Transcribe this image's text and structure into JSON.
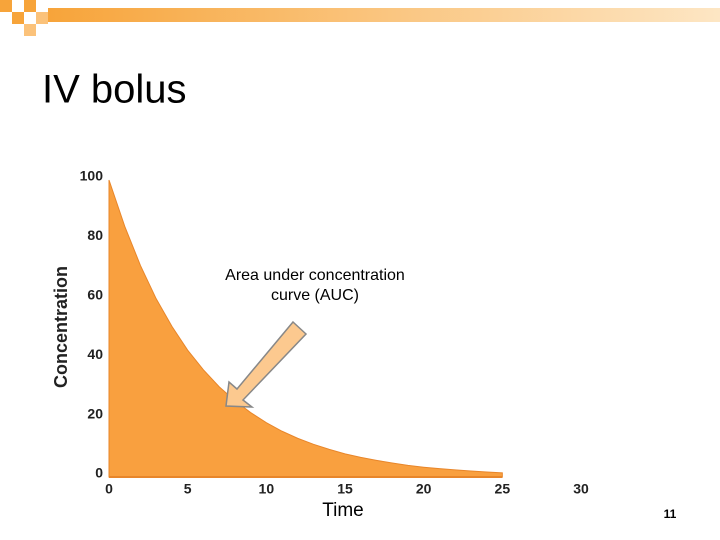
{
  "title": "IV bolus",
  "page_number": "11",
  "chart_data": {
    "type": "area",
    "x": [
      0,
      1,
      2,
      3,
      4,
      5,
      6,
      7,
      8,
      9,
      10,
      11,
      12,
      13,
      14,
      15,
      16,
      17,
      18,
      19,
      20,
      21,
      22,
      23,
      24,
      25
    ],
    "values": [
      100,
      84.4,
      71.2,
      60,
      50.7,
      42.7,
      36.1,
      30.4,
      25.7,
      21.7,
      18.3,
      15.4,
      13,
      11,
      9.3,
      7.8,
      6.6,
      5.6,
      4.7,
      3.9,
      3.3,
      2.8,
      2.4,
      2,
      1.7,
      1.4
    ],
    "color": "#f9a03f",
    "xlim": [
      0,
      30
    ],
    "xticks": [
      0,
      5,
      10,
      15,
      20,
      25,
      30
    ],
    "ylim": [
      0,
      100
    ],
    "yticks": [
      0,
      20,
      40,
      60,
      80,
      100
    ],
    "x_label": "Time",
    "y_label": "Concentration",
    "annotation": "Area under concentration curve (AUC)"
  }
}
